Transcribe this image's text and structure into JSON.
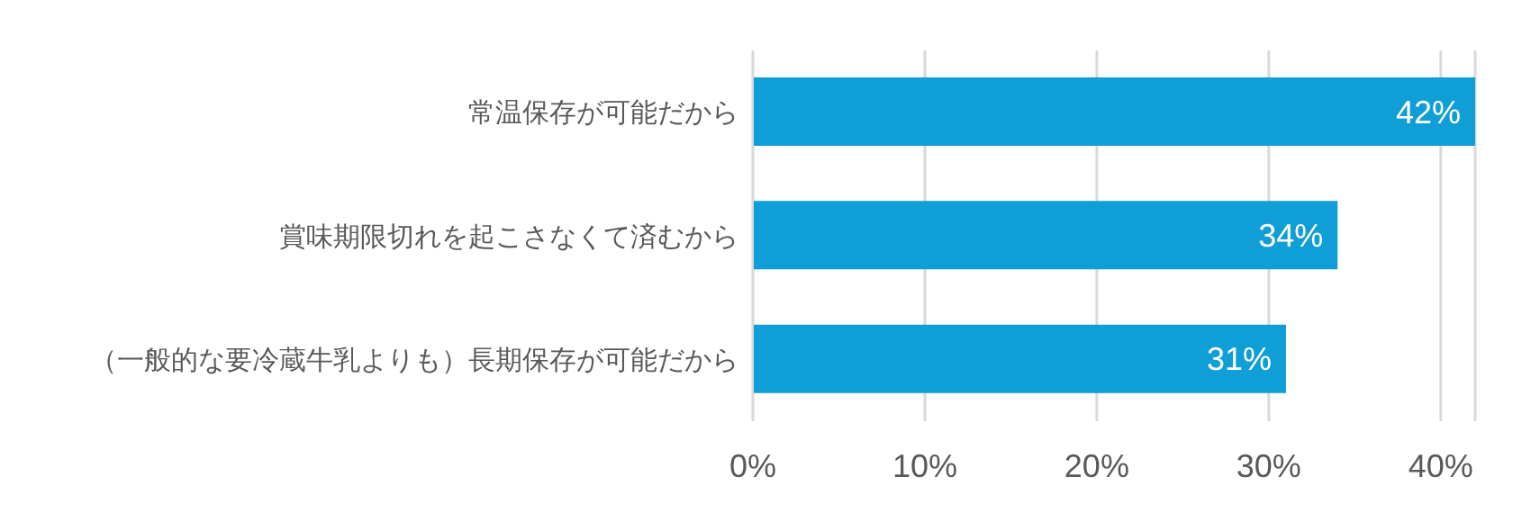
{
  "chart_data": {
    "type": "bar",
    "orientation": "horizontal",
    "categories": [
      "常温保存が可能だから",
      "賞味期限切れを起こさなくて済むから",
      "（一般的な要冷蔵牛乳よりも）長期保存が可能だから"
    ],
    "values": [
      42,
      34,
      31
    ],
    "color": "#0f9ed5",
    "value_labels": [
      "42%",
      "34%",
      "31%"
    ],
    "xlim": [
      0,
      42
    ],
    "xticks": [
      {
        "value": 0,
        "label": "0%"
      },
      {
        "value": 10,
        "label": "10%"
      },
      {
        "value": 20,
        "label": "20%"
      },
      {
        "value": 30,
        "label": "30%"
      },
      {
        "value": 40,
        "label": "40%"
      }
    ],
    "grid": "x"
  }
}
